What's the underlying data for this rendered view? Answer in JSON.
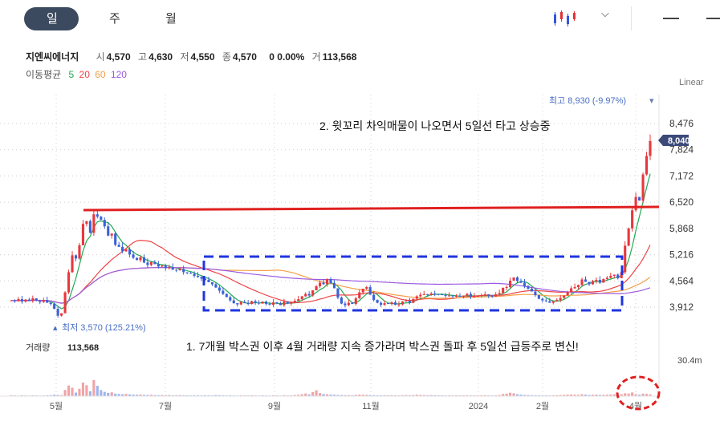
{
  "tabs": [
    {
      "label": "일"
    },
    {
      "label": "주"
    },
    {
      "label": "월"
    }
  ],
  "stock": {
    "name": "지엔씨에너지",
    "open_label": "시",
    "open": "4,570",
    "high_label": "고",
    "high": "4,630",
    "low_label": "저",
    "low": "4,550",
    "close_label": "종",
    "close": "4,570",
    "change": "0 0.00%",
    "volume_label": "거",
    "volume": "113,568"
  },
  "ma_legend": {
    "label": "이동평균",
    "periods": [
      "5",
      "20",
      "60",
      "120"
    ],
    "colors": [
      "#22aa55",
      "#ee4444",
      "#f5a04a",
      "#9b59e0"
    ]
  },
  "scale_mode": "Linear",
  "volume_panel": {
    "label": "거래량",
    "value": "113,568",
    "max_label": "30.4m"
  },
  "chart_data": {
    "type": "candlestick",
    "y_ticks": [
      3912,
      4564,
      5216,
      5868,
      6520,
      7172,
      7824,
      8476
    ],
    "y_tick_labels": [
      "3,912",
      "4,564",
      "5,216",
      "5,868",
      "6,520",
      "7,172",
      "7,824",
      "8,476"
    ],
    "ylim": [
      3400,
      9000
    ],
    "x_tick_labels": [
      "5월",
      "7월",
      "9월",
      "11월",
      "2024",
      "2월",
      "4월"
    ],
    "current_price": "8,040",
    "high_marker": "최고 8,930 (-9.97%)",
    "low_marker": "최저 3,570 (125.21%)",
    "resistance_level": 6360,
    "box_range": [
      3840,
      5220
    ],
    "closes": [
      4080,
      4060,
      4110,
      4050,
      4100,
      4060,
      4130,
      4070,
      4040,
      4090,
      4020,
      3990,
      3870,
      3700,
      3760,
      4280,
      4780,
      5200,
      5120,
      5450,
      5980,
      6050,
      5760,
      6220,
      6160,
      6080,
      5920,
      5690,
      5740,
      5460,
      5410,
      5300,
      5350,
      5220,
      5140,
      5080,
      5150,
      5020,
      4960,
      5030,
      4980,
      4920,
      4950,
      4880,
      4900,
      4840,
      4830,
      4860,
      4780,
      4760,
      4740,
      4690,
      4660,
      4620,
      4590,
      4530,
      4480,
      4400,
      4320,
      4240,
      4160,
      4080,
      4010,
      3980,
      4040,
      4010,
      3990,
      4060,
      4020,
      4000,
      4050,
      3990,
      3970,
      4030,
      4010,
      3960,
      4050,
      4000,
      4030,
      4070,
      4110,
      4180,
      4240,
      4200,
      4330,
      4430,
      4520,
      4480,
      4610,
      4510,
      4380,
      4150,
      4000,
      3960,
      4020,
      3990,
      4130,
      4280,
      4370,
      4410,
      4220,
      4090,
      4020,
      3970,
      4010,
      3990,
      4030,
      3970,
      3980,
      4050,
      4070,
      4020,
      4120,
      4180,
      4220,
      4230,
      4210,
      4250,
      4240,
      4230,
      4210,
      4190,
      4200,
      4180,
      4190,
      4170,
      4200,
      4240,
      4170,
      4180,
      4190,
      4210,
      4230,
      4190,
      4170,
      4230,
      4260,
      4390,
      4410,
      4570,
      4650,
      4560,
      4520,
      4440,
      4370,
      4300,
      4210,
      4120,
      4080,
      4060,
      4020,
      4060,
      4090,
      4140,
      4200,
      4290,
      4380,
      4410,
      4460,
      4600,
      4540,
      4480,
      4560,
      4590,
      4520,
      4610,
      4640,
      4690,
      4720,
      4630,
      4780,
      5440,
      5870,
      6320,
      6650,
      6560,
      7210,
      7670,
      8040
    ],
    "volume_series": [
      0.8,
      0.6,
      0.5,
      0.7,
      0.6,
      0.5,
      0.7,
      0.6,
      0.5,
      0.6,
      0.7,
      0.8,
      1.2,
      1.0,
      0.9,
      5.2,
      9.0,
      7.1,
      3.0,
      6.2,
      11.4,
      9.2,
      4.1,
      13.6,
      8.7,
      5.1,
      3.6,
      2.8,
      3.2,
      2.1,
      1.8,
      1.6,
      1.9,
      1.5,
      1.3,
      1.2,
      1.4,
      1.1,
      1.0,
      1.2,
      0.9,
      0.8,
      1.0,
      0.8,
      0.9,
      0.7,
      0.8,
      0.9,
      0.7,
      0.7,
      0.6,
      0.8,
      0.7,
      0.6,
      0.8,
      0.7,
      0.6,
      0.9,
      0.8,
      0.7,
      0.6,
      0.7,
      0.6,
      0.5,
      0.7,
      0.6,
      0.6,
      0.8,
      0.6,
      0.5,
      0.7,
      0.6,
      0.5,
      0.7,
      0.6,
      0.5,
      0.8,
      0.6,
      0.7,
      0.9,
      1.1,
      1.6,
      2.2,
      1.5,
      3.4,
      4.9,
      2.6,
      1.8,
      1.6,
      1.3,
      1.2,
      1.0,
      0.9,
      0.8,
      0.9,
      0.8,
      1.1,
      1.3,
      1.2,
      1.1,
      0.9,
      0.8,
      0.7,
      0.7,
      0.8,
      0.7,
      0.8,
      0.7,
      0.6,
      0.8,
      0.9,
      0.7,
      0.9,
      1.2,
      1.0,
      0.9,
      0.8,
      0.9,
      0.8,
      0.7,
      0.7,
      0.6,
      0.7,
      0.6,
      0.7,
      0.6,
      0.7,
      0.8,
      0.6,
      0.7,
      0.6,
      0.7,
      0.8,
      0.6,
      0.6,
      0.7,
      0.9,
      1.8,
      2.1,
      2.9,
      2.4,
      1.6,
      1.3,
      1.0,
      0.9,
      0.8,
      0.7,
      0.7,
      0.6,
      0.7,
      0.6,
      0.7,
      0.8,
      0.9,
      1.1,
      1.3,
      1.4,
      1.2,
      1.1,
      1.6,
      1.3,
      1.0,
      1.2,
      1.3,
      1.0,
      1.1,
      1.2,
      1.4,
      1.5,
      1.2,
      1.6,
      2.4,
      2.2,
      3.1,
      1.6,
      1.2,
      2.1,
      1.9,
      1.5
    ],
    "ma_periods": [
      5,
      20,
      60,
      120
    ]
  },
  "annotations": {
    "note_top": "2. 윗꼬리 차익매물이 나오면서 5일선 타고 상승중",
    "note_bottom": "1. 7개월 박스권 이후 4월 거래량 지속 증가라며 박스권 돌파 후 5일선 급등주로 변신!"
  }
}
